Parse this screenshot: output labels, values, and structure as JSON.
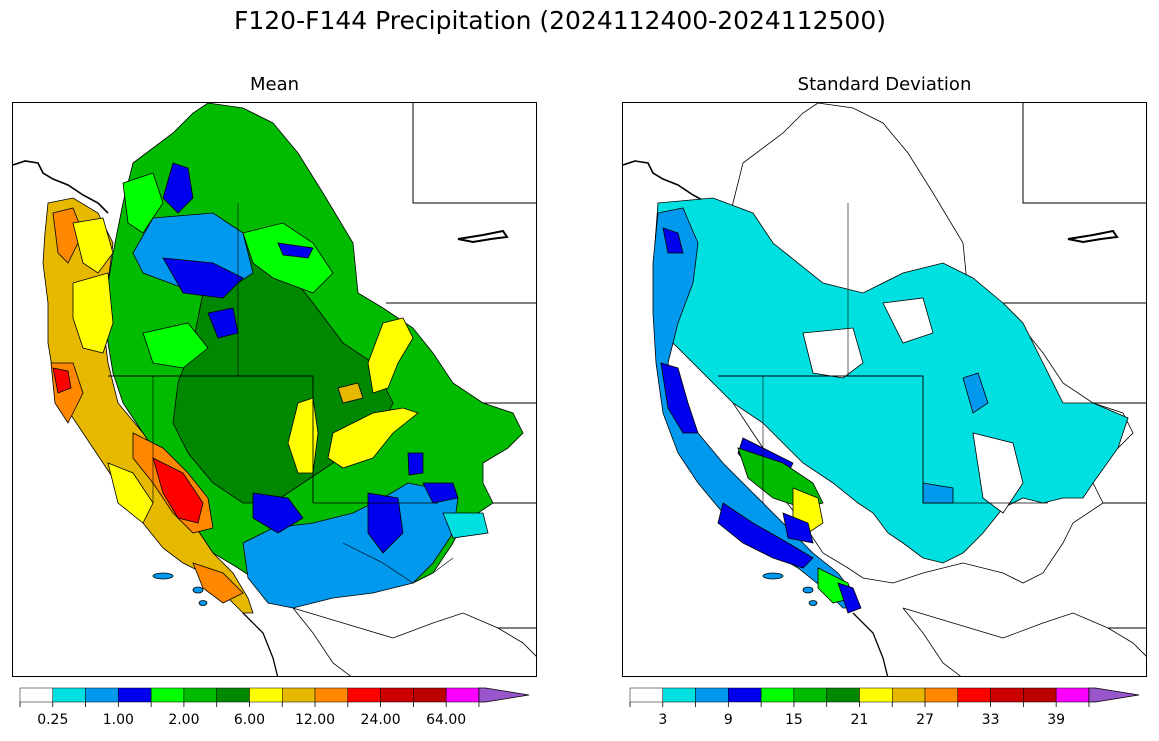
{
  "figure": {
    "title": "F120-F144 Precipitation (2024112400-2024112500)"
  },
  "panels": [
    {
      "subtitle": "Mean",
      "colorbar": {
        "colors": [
          "#ffffff",
          "#00e0e0",
          "#0099ee",
          "#0000ee",
          "#00ff00",
          "#00bb00",
          "#008800",
          "#ffff00",
          "#e6b800",
          "#ff8800",
          "#ff0000",
          "#cc0000",
          "#bb0000",
          "#ff00ff",
          "#9955cc"
        ],
        "tick_labels": [
          "0.25",
          "1.00",
          "2.00",
          "6.00",
          "12.00",
          "24.00",
          "64.00"
        ],
        "extend": "max"
      }
    },
    {
      "subtitle": "Standard Deviation",
      "colorbar": {
        "colors": [
          "#ffffff",
          "#00e0e0",
          "#0099ee",
          "#0000ee",
          "#00ff00",
          "#00bb00",
          "#008800",
          "#ffff00",
          "#e6b800",
          "#ff8800",
          "#ff0000",
          "#cc0000",
          "#bb0000",
          "#ff00ff",
          "#9955cc"
        ],
        "tick_labels": [
          "3",
          "9",
          "15",
          "21",
          "27",
          "33",
          "39"
        ],
        "extend": "max"
      }
    }
  ]
}
